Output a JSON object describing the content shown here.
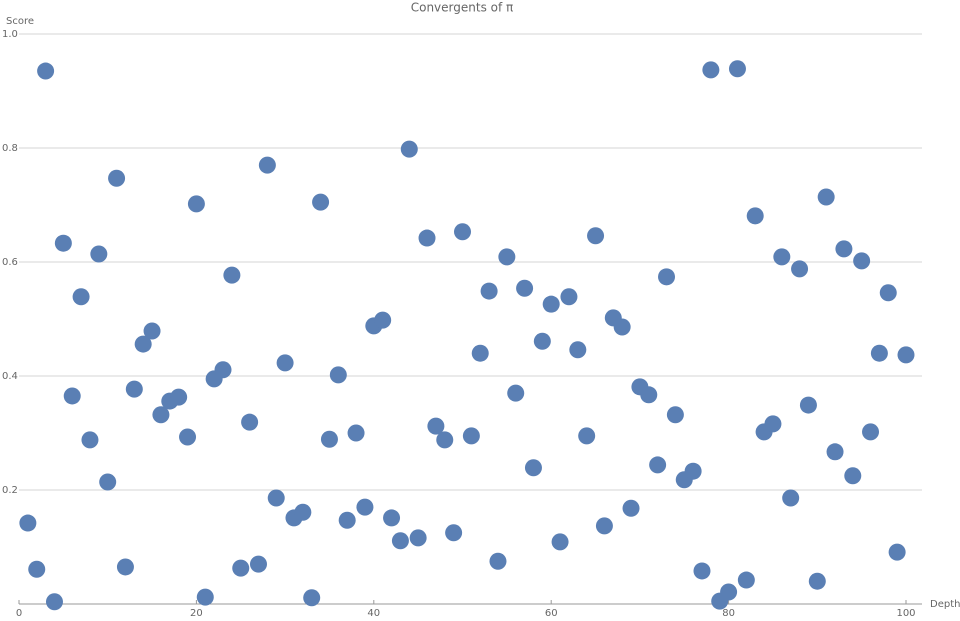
{
  "chart_data": {
    "type": "scatter",
    "title": "Convergents of π",
    "x_label": "Depth",
    "y_label": "Score",
    "color": "#5a7fb4",
    "grid": true,
    "xlim": [
      0,
      100
    ],
    "ylim": [
      0,
      1
    ],
    "xticks": [
      0,
      20,
      40,
      60,
      80,
      100
    ],
    "yticks": [
      0.2,
      0.4,
      0.6,
      0.8,
      {
        "value": 1,
        "label": "1.0"
      }
    ],
    "x": [
      1,
      2,
      3,
      4,
      5,
      6,
      7,
      8,
      9,
      10,
      11,
      12,
      13,
      14,
      15,
      16,
      17,
      18,
      19,
      20,
      21,
      22,
      23,
      24,
      25,
      26,
      27,
      28,
      29,
      30,
      31,
      32,
      33,
      34,
      35,
      36,
      37,
      38,
      39,
      40,
      41,
      42,
      43,
      44,
      45,
      46,
      47,
      48,
      49,
      50,
      51,
      52,
      53,
      54,
      55,
      56,
      57,
      58,
      59,
      60,
      61,
      62,
      63,
      64,
      65,
      66,
      67,
      68,
      69,
      70,
      71,
      72,
      73,
      74,
      75,
      76,
      77,
      78,
      79,
      80,
      81,
      82,
      83,
      84,
      85,
      86,
      87,
      88,
      89,
      90,
      91,
      92,
      93,
      94,
      95,
      96,
      97,
      98,
      99,
      100
    ],
    "values": [
      0.142,
      0.061,
      0.935,
      0.004,
      0.633,
      0.365,
      0.539,
      0.288,
      0.614,
      0.214,
      0.747,
      0.065,
      0.377,
      0.456,
      0.479,
      0.332,
      0.356,
      0.363,
      0.293,
      0.702,
      0.012,
      0.395,
      0.411,
      0.577,
      0.063,
      0.319,
      0.07,
      0.77,
      0.186,
      0.423,
      0.151,
      0.161,
      0.011,
      0.705,
      0.289,
      0.402,
      0.147,
      0.3,
      0.17,
      0.488,
      0.498,
      0.151,
      0.111,
      0.798,
      0.116,
      0.642,
      0.312,
      0.288,
      0.125,
      0.653,
      0.295,
      0.44,
      0.549,
      0.075,
      0.609,
      0.37,
      0.554,
      0.239,
      0.461,
      0.526,
      0.109,
      0.539,
      0.446,
      0.295,
      0.646,
      0.137,
      0.502,
      0.486,
      0.168,
      0.381,
      0.367,
      0.244,
      0.574,
      0.332,
      0.218,
      0.233,
      0.058,
      0.937,
      0.005,
      0.021,
      0.939,
      0.042,
      0.681,
      0.302,
      0.316,
      0.609,
      0.186,
      0.588,
      0.349,
      0.04,
      0.714,
      0.267,
      0.623,
      0.225,
      0.602,
      0.302,
      0.44,
      0.546,
      0.091,
      0.437
    ]
  }
}
